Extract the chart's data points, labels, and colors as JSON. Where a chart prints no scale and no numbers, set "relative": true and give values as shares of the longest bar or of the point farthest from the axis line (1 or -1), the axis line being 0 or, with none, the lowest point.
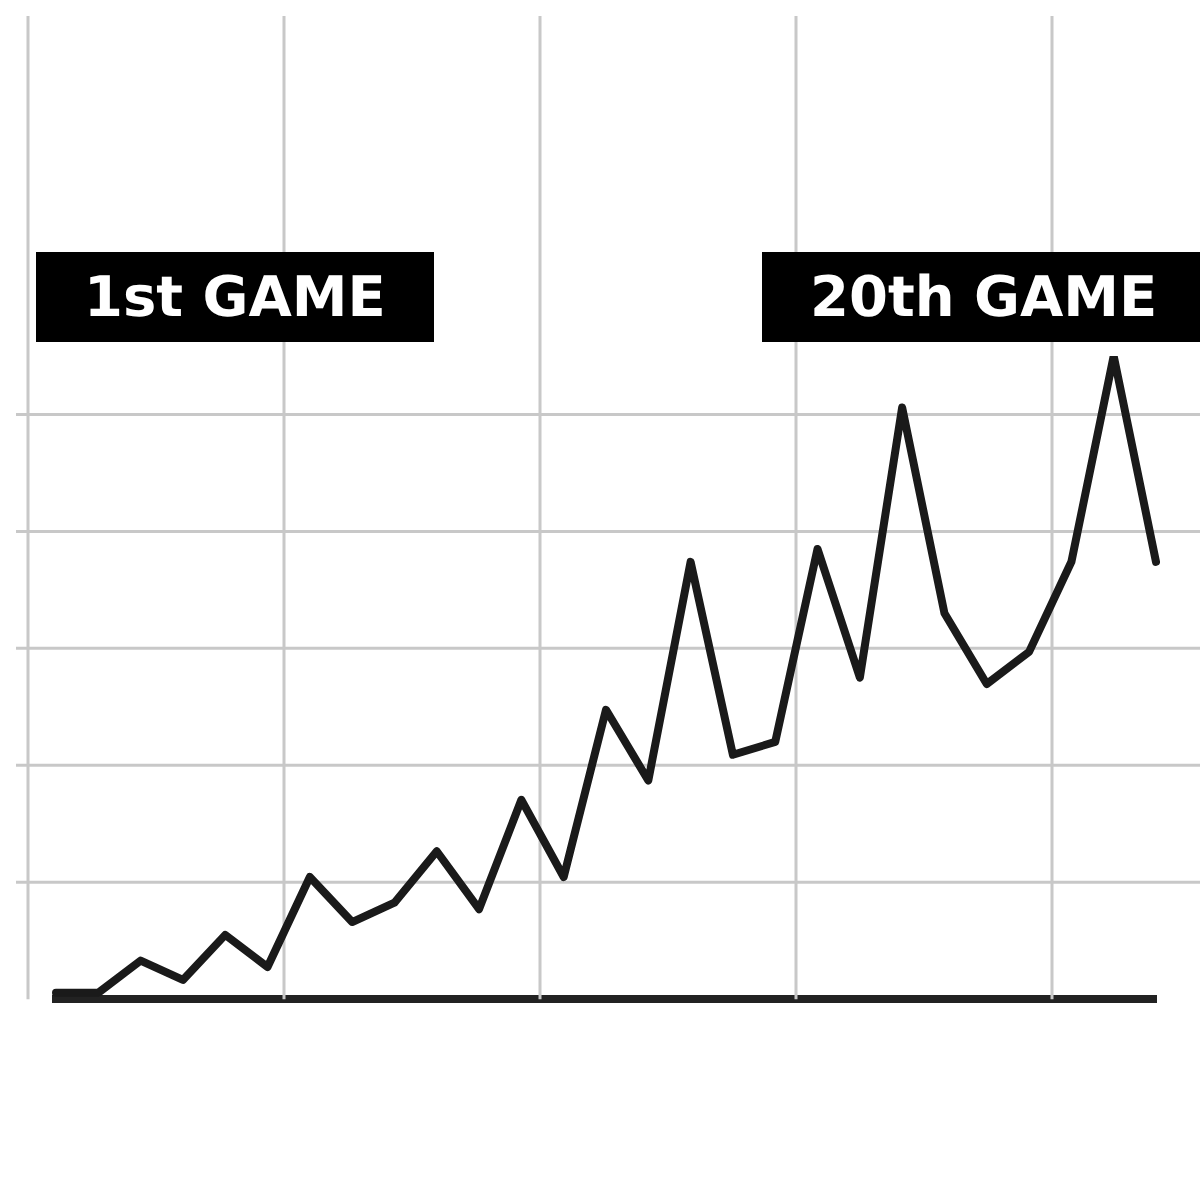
{
  "chart_data": {
    "type": "line",
    "relative": true,
    "grid": true,
    "marker": "none",
    "line_style": "solid",
    "legend": false,
    "annotations": [
      "1st GAME",
      "20th GAME"
    ],
    "categories": [
      null,
      null,
      null,
      null,
      null,
      null,
      null,
      null,
      null,
      null,
      null,
      null,
      null,
      null,
      null,
      null,
      null,
      null,
      null,
      null,
      null,
      null,
      null,
      null,
      null,
      null,
      null
    ],
    "series": [
      {
        "color": "#1a1a1a",
        "values": [
          0.01,
          0.01,
          0.06,
          0.03,
          0.1,
          0.05,
          0.19,
          0.12,
          0.15,
          0.23,
          0.14,
          0.31,
          0.19,
          0.45,
          0.34,
          0.68,
          0.38,
          0.4,
          0.7,
          0.5,
          0.92,
          0.6,
          0.49,
          0.54,
          0.68,
          1,
          0.68
        ]
      }
    ]
  }
}
